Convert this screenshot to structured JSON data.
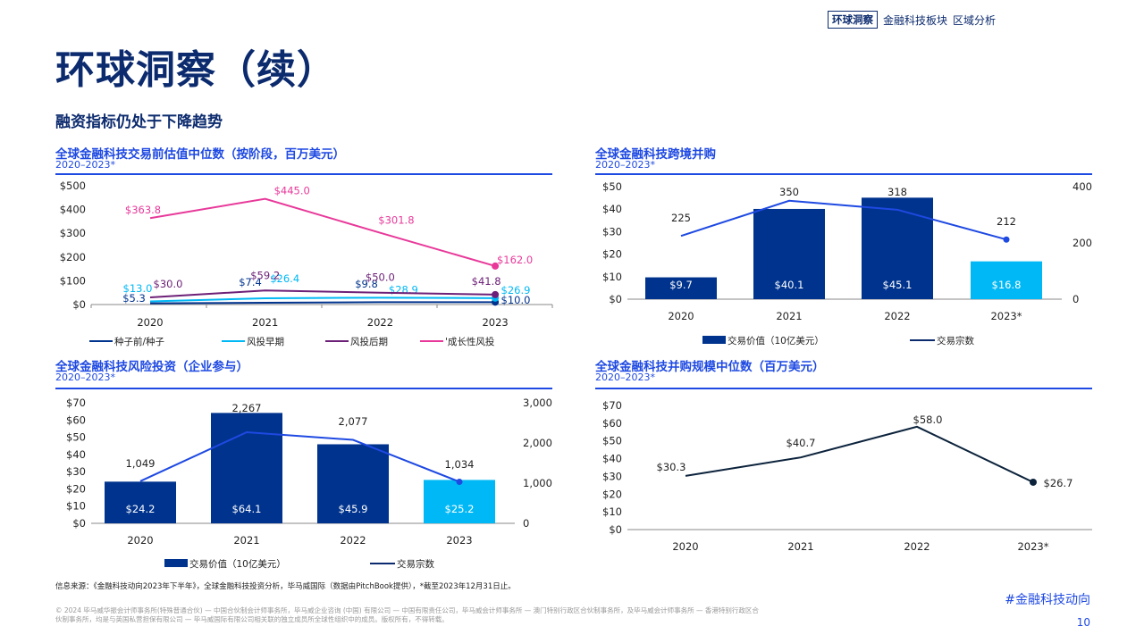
{
  "nav": {
    "active": "环球洞察",
    "item1": "金融科技板块",
    "item2": "区域分析"
  },
  "page_title": "环球洞察（续）",
  "subtitle": "融资指标仍处于下降趋势",
  "colors": {
    "navy": "#00338d",
    "cyan": "#00b8f5",
    "purple": "#6d2077",
    "pink": "#e8399a",
    "blue_line": "#1e49e2",
    "dark_line": "#0c233c"
  },
  "chart_data": [
    {
      "id": "c1",
      "type": "line",
      "title": "全球金融科技交易前估值中位数（按阶段，百万美元）",
      "period": "2020–2023*",
      "categories": [
        "2020",
        "2021",
        "2022",
        "2023"
      ],
      "y_ticks": [
        "$0",
        "$100",
        "$200",
        "$300",
        "$400",
        "$500"
      ],
      "ylim": [
        0,
        500
      ],
      "series": [
        {
          "name": "种子前/种子",
          "color": "#00338d",
          "values": [
            5.3,
            7.4,
            9.8,
            10.0
          ],
          "labels": [
            "$5.3",
            "$7.4",
            "$9.8",
            "$10.0"
          ]
        },
        {
          "name": "风投早期",
          "color": "#00b8f5",
          "values": [
            13.0,
            26.4,
            28.9,
            26.9
          ],
          "labels": [
            "$13.0",
            "$26.4",
            "$28.9",
            "$26.9"
          ]
        },
        {
          "name": "风投后期",
          "color": "#6d2077",
          "values": [
            30.0,
            59.2,
            50.0,
            41.8
          ],
          "labels": [
            "$30.0",
            "$59.2",
            "$50.0",
            "$41.8"
          ]
        },
        {
          "name": "'成长性风投",
          "color": "#e8399a",
          "values": [
            363.8,
            445.0,
            301.8,
            162.0
          ],
          "labels": [
            "$363.8",
            "$445.0",
            "$301.8",
            "$162.0"
          ]
        }
      ],
      "legend": "bottom"
    },
    {
      "id": "c2",
      "type": "bar",
      "title": "全球金融科技跨境并购",
      "period": "2020–2023*",
      "categories": [
        "2020",
        "2021",
        "2022",
        "2023*"
      ],
      "bar_series": {
        "name": "交易价值（10亿美元）",
        "values": [
          9.7,
          40.1,
          45.1,
          16.8
        ],
        "labels": [
          "$9.7",
          "$40.1",
          "$45.1",
          "$16.8"
        ]
      },
      "line_series": {
        "name": "交易宗数",
        "values": [
          225,
          350,
          318,
          212
        ],
        "labels": [
          "225",
          "350",
          "318",
          "212"
        ]
      },
      "y_ticks": [
        "$0",
        "$10",
        "$20",
        "$30",
        "$40",
        "$50"
      ],
      "ylim": [
        0,
        50
      ],
      "y2_ticks": [
        "0",
        "200",
        "400"
      ],
      "y2lim": [
        0,
        400
      ],
      "legend": "bottom"
    },
    {
      "id": "c3",
      "type": "bar",
      "title": "全球金融科技风险投资（企业参与）",
      "period": "2020–2023*",
      "categories": [
        "2020",
        "2021",
        "2022",
        "2023"
      ],
      "bar_series": {
        "name": "交易价值（10亿美元）",
        "values": [
          24.2,
          64.1,
          45.9,
          25.2
        ],
        "labels": [
          "$24.2",
          "$64.1",
          "$45.9",
          "$25.2"
        ]
      },
      "line_series": {
        "name": "交易宗数",
        "values": [
          1049,
          2267,
          2077,
          1034
        ],
        "labels": [
          "1,049",
          "2,267",
          "2,077",
          "1,034"
        ]
      },
      "y_ticks": [
        "$0",
        "$10",
        "$20",
        "$30",
        "$40",
        "$50",
        "$60",
        "$70"
      ],
      "ylim": [
        0,
        70
      ],
      "y2_ticks": [
        "0",
        "1,000",
        "2,000",
        "3,000"
      ],
      "y2lim": [
        0,
        3000
      ],
      "legend": "bottom"
    },
    {
      "id": "c4",
      "type": "line",
      "title": "全球金融科技并购规模中位数（百万美元）",
      "period": "2020–2023*",
      "categories": [
        "2020",
        "2021",
        "2022",
        "2023*"
      ],
      "series": [
        {
          "color": "#0c233c",
          "values": [
            30.3,
            40.7,
            58.0,
            26.7
          ],
          "labels": [
            "$30.3",
            "$40.7",
            "$58.0",
            "$26.7"
          ]
        }
      ],
      "y_ticks": [
        "$0",
        "$10",
        "$20",
        "$30",
        "$40",
        "$50",
        "$60",
        "$70"
      ],
      "ylim": [
        0,
        70
      ]
    }
  ],
  "source": "信息来源：《金融科技动向2023年下半年》，全球金融科技投资分析，毕马威国际（数据由PitchBook提供），*截至2023年12月31日止。",
  "copyright": "© 2024 毕马威华振会计师事务所(特殊普通合伙) — 中国合伙制会计师事务所，毕马威企业咨询 (中国) 有限公司 — 中国有限责任公司，毕马威会计师事务所 — 澳门特别行政区合伙制事务所，及毕马威会计师事务所 — 香港特别行政区合伙制事务所，均是与英国私营担保有限公司 — 毕马威国际有限公司相关联的独立成员所全球性组织中的成员。版权所有，不得转载。",
  "hashtag": "#金融科技动向",
  "page_number": "10"
}
